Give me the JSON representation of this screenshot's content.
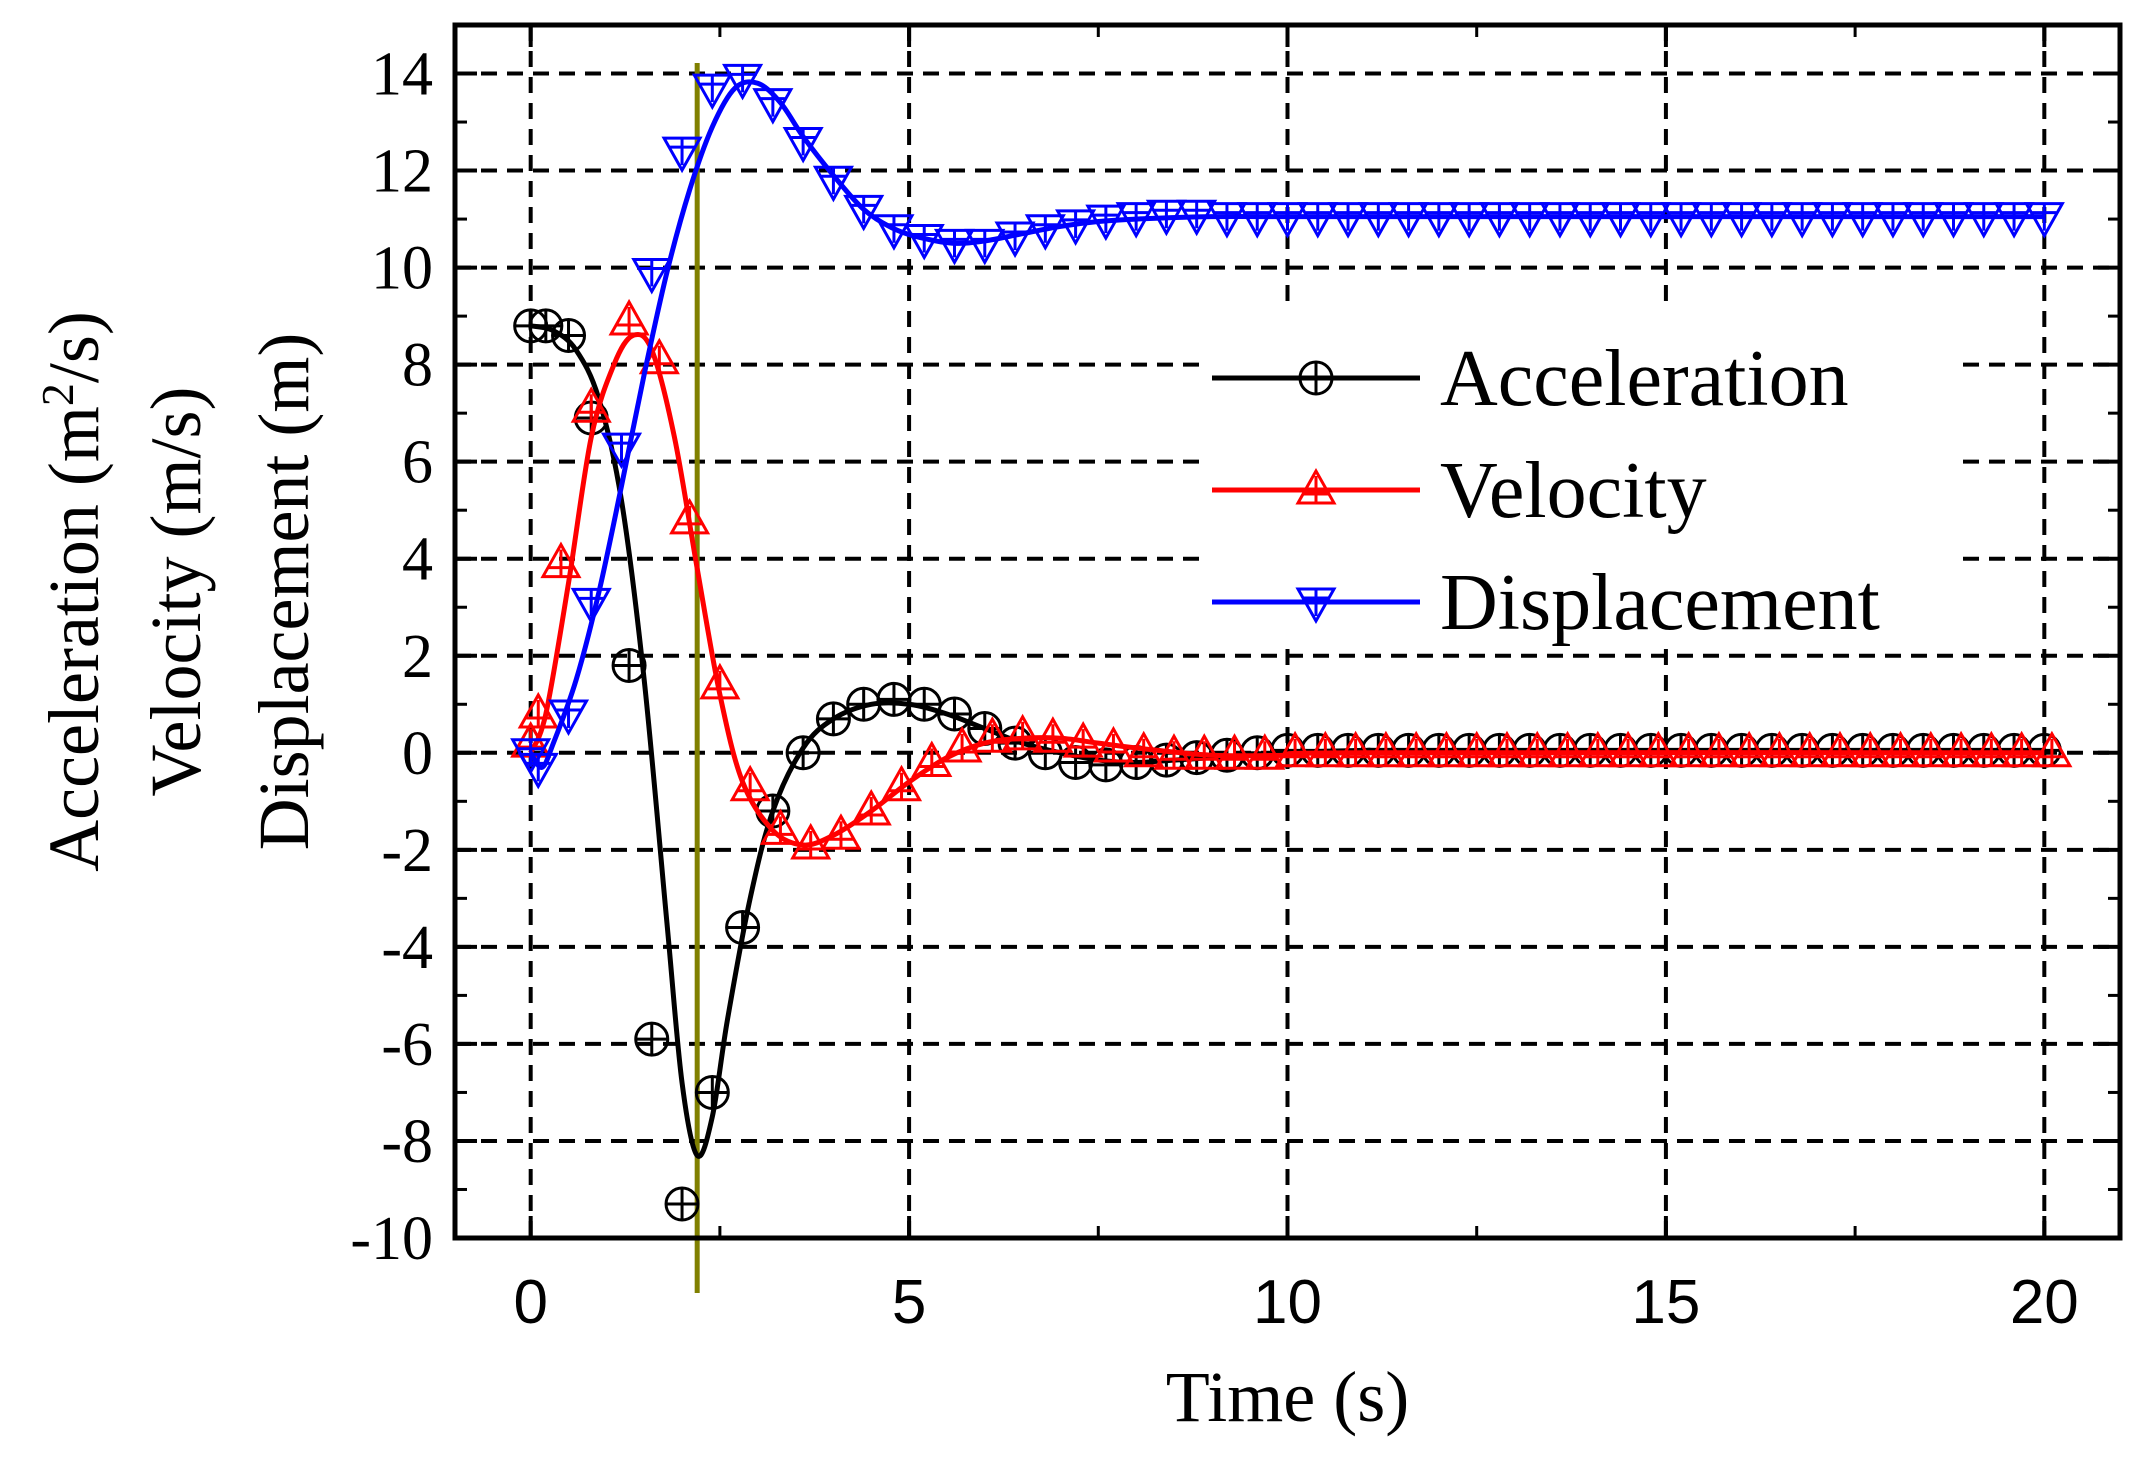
{
  "chart_data": {
    "type": "line",
    "xlabel": "Time (s)",
    "ylabel_lines": [
      "Acceleration (m²/s)",
      "Velocity (m/s)",
      "Displacement (m)"
    ],
    "ylabel_acc_prefix": "Acceleration (m",
    "ylabel_acc_sup": "2",
    "ylabel_acc_suffix": "/s)",
    "xlim": [
      -1,
      21
    ],
    "ylim": [
      -10,
      15
    ],
    "x_ticks": [
      0,
      5,
      10,
      15,
      20
    ],
    "y_ticks": [
      -10,
      -8,
      -6,
      -4,
      -2,
      0,
      2,
      4,
      6,
      8,
      10,
      12,
      14
    ],
    "x_tick_labels": [
      "0",
      "5",
      "10",
      "15",
      "20"
    ],
    "y_tick_labels": [
      "-10",
      "-8",
      "-6",
      "-4",
      "-2",
      "0",
      "2",
      "4",
      "6",
      "8",
      "10",
      "12",
      "14"
    ],
    "grid": true,
    "legend_position": "right",
    "reference_line_x": 2.2,
    "reference_line_color": "#808000",
    "series": [
      {
        "name": "Acceleration",
        "color": "#000000",
        "marker": "circle-plus",
        "curve": [
          [
            0,
            8.8
          ],
          [
            0.3,
            8.7
          ],
          [
            0.6,
            8.3
          ],
          [
            0.9,
            7.3
          ],
          [
            1.2,
            5.2
          ],
          [
            1.5,
            1.5
          ],
          [
            1.8,
            -3.5
          ],
          [
            2.0,
            -6.8
          ],
          [
            2.2,
            -8.3
          ],
          [
            2.4,
            -7.5
          ],
          [
            2.6,
            -5.5
          ],
          [
            2.9,
            -3.0
          ],
          [
            3.2,
            -1.2
          ],
          [
            3.6,
            0.1
          ],
          [
            4.0,
            0.7
          ],
          [
            4.5,
            1.0
          ],
          [
            5.0,
            1.0
          ],
          [
            5.5,
            0.8
          ],
          [
            6.0,
            0.5
          ],
          [
            6.5,
            0.2
          ],
          [
            7.0,
            0.0
          ],
          [
            7.5,
            -0.15
          ],
          [
            8.0,
            -0.2
          ],
          [
            8.5,
            -0.15
          ],
          [
            9.0,
            -0.1
          ],
          [
            10.0,
            0.0
          ],
          [
            11.0,
            0.05
          ],
          [
            12.0,
            0.05
          ],
          [
            20.0,
            0.05
          ]
        ],
        "markers": [
          [
            0,
            8.8
          ],
          [
            0.2,
            8.8
          ],
          [
            0.5,
            8.6
          ],
          [
            0.8,
            6.9
          ],
          [
            1.3,
            1.8
          ],
          [
            1.6,
            -5.9
          ],
          [
            2.0,
            -9.3
          ],
          [
            2.4,
            -7.0
          ],
          [
            2.8,
            -3.6
          ],
          [
            3.2,
            -1.2
          ],
          [
            3.6,
            0.0
          ],
          [
            4.0,
            0.7
          ],
          [
            4.4,
            1.0
          ],
          [
            4.8,
            1.1
          ],
          [
            5.2,
            1.0
          ],
          [
            5.6,
            0.8
          ],
          [
            6.0,
            0.5
          ],
          [
            6.4,
            0.2
          ],
          [
            6.8,
            0.0
          ],
          [
            7.2,
            -0.2
          ],
          [
            7.6,
            -0.25
          ],
          [
            8.0,
            -0.2
          ],
          [
            8.4,
            -0.15
          ],
          [
            8.8,
            -0.1
          ],
          [
            9.2,
            -0.05
          ],
          [
            9.6,
            0.0
          ],
          [
            10.0,
            0.05
          ],
          [
            10.4,
            0.05
          ],
          [
            10.8,
            0.05
          ],
          [
            11.2,
            0.05
          ],
          [
            11.6,
            0.05
          ],
          [
            12.0,
            0.05
          ],
          [
            12.4,
            0.05
          ],
          [
            12.8,
            0.05
          ],
          [
            13.2,
            0.05
          ],
          [
            13.6,
            0.05
          ],
          [
            14.0,
            0.05
          ],
          [
            14.4,
            0.05
          ],
          [
            14.8,
            0.05
          ],
          [
            15.2,
            0.05
          ],
          [
            15.6,
            0.05
          ],
          [
            16.0,
            0.05
          ],
          [
            16.4,
            0.05
          ],
          [
            16.8,
            0.05
          ],
          [
            17.2,
            0.05
          ],
          [
            17.6,
            0.05
          ],
          [
            18.0,
            0.05
          ],
          [
            18.4,
            0.05
          ],
          [
            18.8,
            0.05
          ],
          [
            19.2,
            0.05
          ],
          [
            19.6,
            0.05
          ],
          [
            20.0,
            0.05
          ]
        ]
      },
      {
        "name": "Velocity",
        "color": "#ff0000",
        "marker": "triangle-up",
        "curve": [
          [
            0,
            0
          ],
          [
            0.2,
            0.8
          ],
          [
            0.5,
            3.5
          ],
          [
            0.8,
            6.5
          ],
          [
            1.1,
            8.0
          ],
          [
            1.35,
            8.6
          ],
          [
            1.6,
            8.3
          ],
          [
            1.9,
            6.5
          ],
          [
            2.2,
            3.8
          ],
          [
            2.5,
            1.2
          ],
          [
            2.8,
            -0.6
          ],
          [
            3.2,
            -1.6
          ],
          [
            3.6,
            -1.9
          ],
          [
            4.0,
            -1.7
          ],
          [
            4.5,
            -1.2
          ],
          [
            5.0,
            -0.6
          ],
          [
            5.5,
            -0.1
          ],
          [
            6.0,
            0.2
          ],
          [
            6.5,
            0.3
          ],
          [
            7.0,
            0.3
          ],
          [
            7.5,
            0.2
          ],
          [
            8.0,
            0.1
          ],
          [
            9.0,
            -0.05
          ],
          [
            10.0,
            -0.05
          ],
          [
            11.0,
            0.0
          ],
          [
            20.0,
            0.0
          ]
        ],
        "markers": [
          [
            0,
            0.2
          ],
          [
            0.1,
            0.8
          ],
          [
            0.4,
            3.9
          ],
          [
            0.8,
            7.1
          ],
          [
            1.3,
            8.9
          ],
          [
            1.7,
            8.1
          ],
          [
            2.1,
            4.8
          ],
          [
            2.5,
            1.4
          ],
          [
            2.9,
            -0.7
          ],
          [
            3.3,
            -1.6
          ],
          [
            3.7,
            -1.9
          ],
          [
            4.1,
            -1.7
          ],
          [
            4.5,
            -1.2
          ],
          [
            4.9,
            -0.7
          ],
          [
            5.3,
            -0.2
          ],
          [
            5.7,
            0.1
          ],
          [
            6.1,
            0.3
          ],
          [
            6.5,
            0.35
          ],
          [
            6.9,
            0.3
          ],
          [
            7.3,
            0.2
          ],
          [
            7.7,
            0.1
          ],
          [
            8.1,
            0.0
          ],
          [
            8.5,
            -0.05
          ],
          [
            8.9,
            -0.05
          ],
          [
            9.3,
            -0.05
          ],
          [
            9.7,
            -0.05
          ],
          [
            10.1,
            0.0
          ],
          [
            10.5,
            0.0
          ],
          [
            10.9,
            0.0
          ],
          [
            11.3,
            0.0
          ],
          [
            11.7,
            0.0
          ],
          [
            12.1,
            0.0
          ],
          [
            12.5,
            0.0
          ],
          [
            12.9,
            0.0
          ],
          [
            13.3,
            0.0
          ],
          [
            13.7,
            0.0
          ],
          [
            14.1,
            0.0
          ],
          [
            14.5,
            0.0
          ],
          [
            14.9,
            0.0
          ],
          [
            15.3,
            0.0
          ],
          [
            15.7,
            0.0
          ],
          [
            16.1,
            0.0
          ],
          [
            16.5,
            0.0
          ],
          [
            16.9,
            0.0
          ],
          [
            17.3,
            0.0
          ],
          [
            17.7,
            0.0
          ],
          [
            18.1,
            0.0
          ],
          [
            18.5,
            0.0
          ],
          [
            18.9,
            0.0
          ],
          [
            19.3,
            0.0
          ],
          [
            19.7,
            0.0
          ],
          [
            20.1,
            0.0
          ]
        ]
      },
      {
        "name": "Displacement",
        "color": "#0000ff",
        "marker": "triangle-down",
        "curve": [
          [
            0,
            0
          ],
          [
            0.15,
            -0.3
          ],
          [
            0.3,
            0.2
          ],
          [
            0.6,
            1.5
          ],
          [
            0.9,
            3.3
          ],
          [
            1.2,
            5.5
          ],
          [
            1.5,
            7.8
          ],
          [
            1.8,
            9.9
          ],
          [
            2.1,
            11.6
          ],
          [
            2.4,
            12.9
          ],
          [
            2.7,
            13.7
          ],
          [
            3.0,
            13.8
          ],
          [
            3.3,
            13.4
          ],
          [
            3.6,
            12.7
          ],
          [
            4.0,
            11.9
          ],
          [
            4.4,
            11.2
          ],
          [
            4.8,
            10.8
          ],
          [
            5.2,
            10.6
          ],
          [
            5.6,
            10.5
          ],
          [
            6.0,
            10.55
          ],
          [
            6.5,
            10.7
          ],
          [
            7.0,
            10.85
          ],
          [
            7.5,
            10.95
          ],
          [
            8.0,
            11.0
          ],
          [
            9.0,
            11.05
          ],
          [
            10.0,
            11.05
          ],
          [
            11.0,
            11.05
          ],
          [
            20.0,
            11.05
          ]
        ],
        "markers": [
          [
            0,
            0.0
          ],
          [
            0.1,
            -0.3
          ],
          [
            0.5,
            0.8
          ],
          [
            0.8,
            3.1
          ],
          [
            1.2,
            6.3
          ],
          [
            1.6,
            9.9
          ],
          [
            2.0,
            12.4
          ],
          [
            2.4,
            13.7
          ],
          [
            2.8,
            13.9
          ],
          [
            3.2,
            13.4
          ],
          [
            3.6,
            12.6
          ],
          [
            4.0,
            11.8
          ],
          [
            4.4,
            11.2
          ],
          [
            4.8,
            10.8
          ],
          [
            5.2,
            10.6
          ],
          [
            5.6,
            10.5
          ],
          [
            6.0,
            10.5
          ],
          [
            6.4,
            10.65
          ],
          [
            6.8,
            10.8
          ],
          [
            7.2,
            10.9
          ],
          [
            7.6,
            11.0
          ],
          [
            8.0,
            11.05
          ],
          [
            8.4,
            11.1
          ],
          [
            8.8,
            11.1
          ],
          [
            9.2,
            11.05
          ],
          [
            9.6,
            11.05
          ],
          [
            10.0,
            11.05
          ],
          [
            10.4,
            11.05
          ],
          [
            10.8,
            11.05
          ],
          [
            11.2,
            11.05
          ],
          [
            11.6,
            11.05
          ],
          [
            12.0,
            11.05
          ],
          [
            12.4,
            11.05
          ],
          [
            12.8,
            11.05
          ],
          [
            13.2,
            11.05
          ],
          [
            13.6,
            11.05
          ],
          [
            14.0,
            11.05
          ],
          [
            14.4,
            11.05
          ],
          [
            14.8,
            11.05
          ],
          [
            15.2,
            11.05
          ],
          [
            15.6,
            11.05
          ],
          [
            16.0,
            11.05
          ],
          [
            16.4,
            11.05
          ],
          [
            16.8,
            11.05
          ],
          [
            17.2,
            11.05
          ],
          [
            17.6,
            11.05
          ],
          [
            18.0,
            11.05
          ],
          [
            18.4,
            11.05
          ],
          [
            18.8,
            11.05
          ],
          [
            19.2,
            11.05
          ],
          [
            19.6,
            11.05
          ],
          [
            20.0,
            11.05
          ]
        ]
      }
    ]
  }
}
